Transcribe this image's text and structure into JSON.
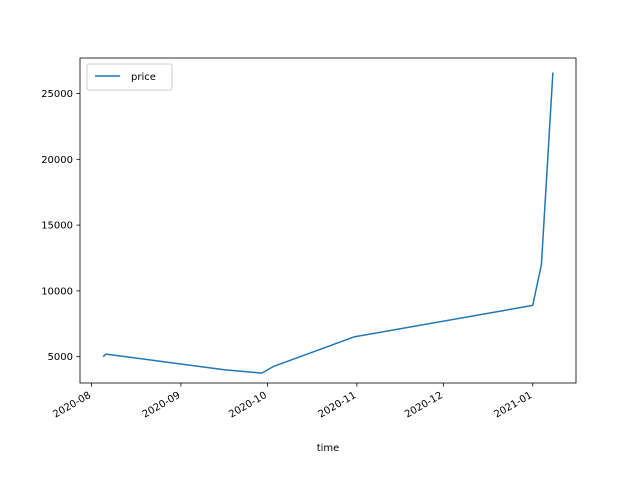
{
  "chart_data": {
    "type": "line",
    "title": "",
    "xlabel": "time",
    "ylabel": "",
    "x_tick_labels": [
      "2020-08",
      "2020-09",
      "2020-10",
      "2020-11",
      "2020-12",
      "2021-01"
    ],
    "x_ticks": [
      "2020-08-01",
      "2020-09-01",
      "2020-10-01",
      "2020-11-01",
      "2020-12-01",
      "2021-01-01"
    ],
    "y_tick_labels": [
      "5000",
      "10000",
      "15000",
      "20000",
      "25000"
    ],
    "y_ticks": [
      5000,
      10000,
      15000,
      20000,
      25000
    ],
    "xlim": [
      "2020-07-28",
      "2021-01-16"
    ],
    "ylim": [
      3000,
      27700
    ],
    "grid": false,
    "legend": {
      "position": "upper-left",
      "entries": [
        "price"
      ]
    },
    "series": [
      {
        "name": "price",
        "color": "#1f77b4",
        "x": [
          "2020-08-05",
          "2020-08-06",
          "2020-09-16",
          "2020-09-29",
          "2020-10-03",
          "2020-10-31",
          "2021-01-01",
          "2021-01-04",
          "2021-01-08"
        ],
        "y": [
          5000,
          5200,
          4000,
          3750,
          4250,
          6500,
          8900,
          12000,
          26600
        ]
      }
    ]
  }
}
